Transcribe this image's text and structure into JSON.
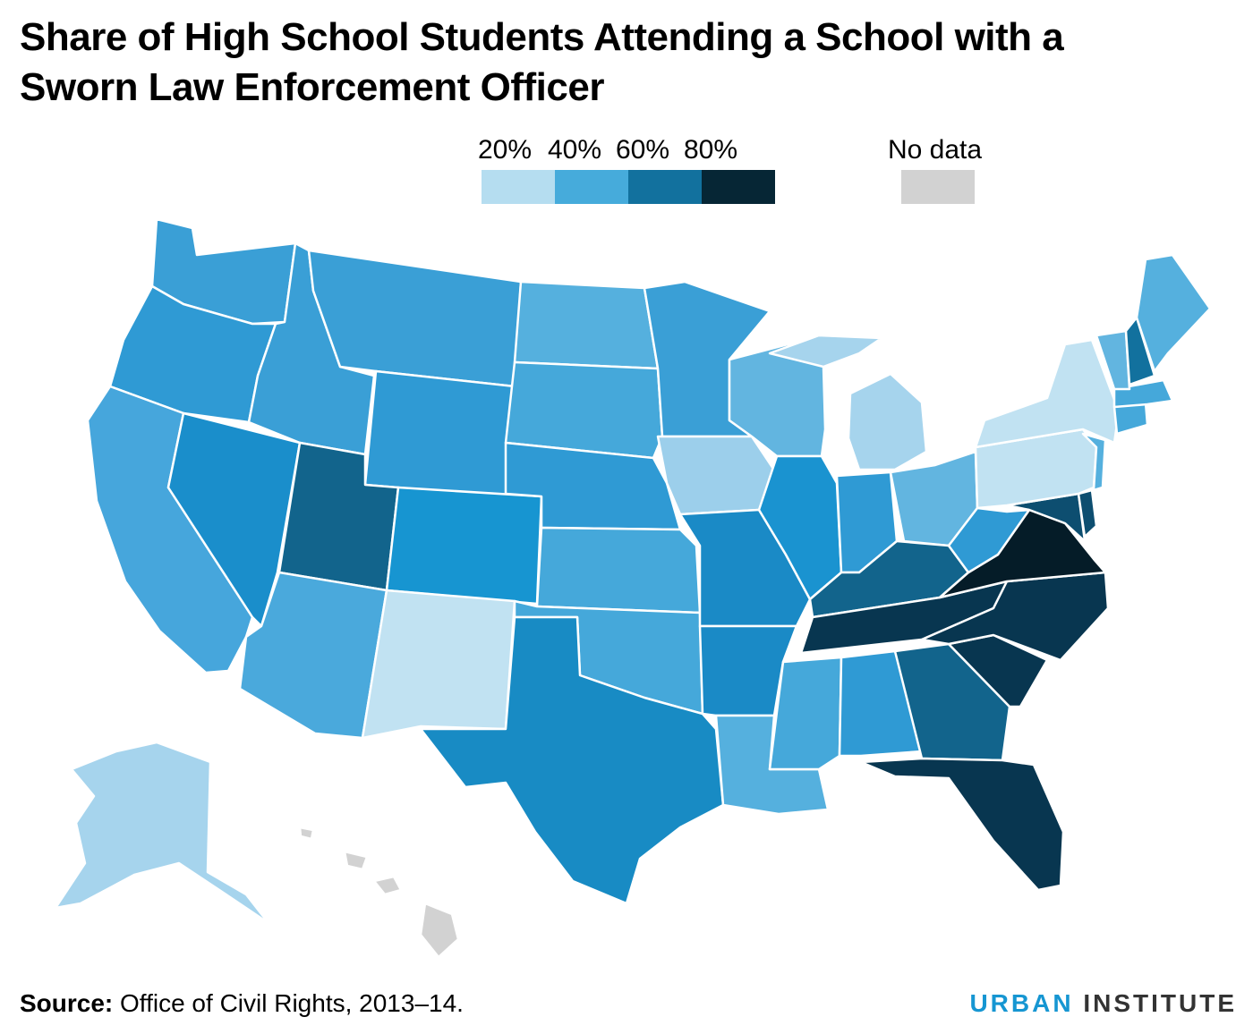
{
  "title": "Share of High School Students Attending a School with a Sworn Law Enforcement Officer",
  "legend": {
    "bins": [
      {
        "label": "20%",
        "color": "#b5ddf0"
      },
      {
        "label": "40%",
        "color": "#46abdb"
      },
      {
        "label": "60%",
        "color": "#12719e"
      },
      {
        "label": "80%",
        "color": "#062635"
      }
    ],
    "no_data_label": "No data",
    "no_data_color": "#d2d2d2"
  },
  "states": [
    {
      "id": "WA",
      "color": "#3a9fd6"
    },
    {
      "id": "OR",
      "color": "#2f9ad4"
    },
    {
      "id": "CA",
      "color": "#46a6dc"
    },
    {
      "id": "NV",
      "color": "#1a8ecb"
    },
    {
      "id": "ID",
      "color": "#3a9fd6"
    },
    {
      "id": "MT",
      "color": "#3a9fd6"
    },
    {
      "id": "WY",
      "color": "#2f9ad4"
    },
    {
      "id": "UT",
      "color": "#12648c"
    },
    {
      "id": "AZ",
      "color": "#4aa9dc"
    },
    {
      "id": "CO",
      "color": "#1795d1"
    },
    {
      "id": "NM",
      "color": "#c1e2f2"
    },
    {
      "id": "ND",
      "color": "#55b0de"
    },
    {
      "id": "SD",
      "color": "#45a8da"
    },
    {
      "id": "NE",
      "color": "#2f9ad4"
    },
    {
      "id": "KS",
      "color": "#45a8da"
    },
    {
      "id": "OK",
      "color": "#45a8da"
    },
    {
      "id": "TX",
      "color": "#188bc4"
    },
    {
      "id": "MN",
      "color": "#3a9fd6"
    },
    {
      "id": "IA",
      "color": "#9ccfeb"
    },
    {
      "id": "MO",
      "color": "#1a8ac6"
    },
    {
      "id": "AR",
      "color": "#1a8ac6"
    },
    {
      "id": "LA",
      "color": "#55b0de"
    },
    {
      "id": "WI",
      "color": "#62b5e0"
    },
    {
      "id": "IL",
      "color": "#1a93d0"
    },
    {
      "id": "MI",
      "color": "#a6d4ed"
    },
    {
      "id": "IN",
      "color": "#2f9ad4"
    },
    {
      "id": "OH",
      "color": "#62b5e0"
    },
    {
      "id": "KY",
      "color": "#12648c"
    },
    {
      "id": "TN",
      "color": "#083650"
    },
    {
      "id": "MS",
      "color": "#45a8da"
    },
    {
      "id": "AL",
      "color": "#2f9ad4"
    },
    {
      "id": "GA",
      "color": "#12648c"
    },
    {
      "id": "FL",
      "color": "#083650"
    },
    {
      "id": "SC",
      "color": "#083650"
    },
    {
      "id": "NC",
      "color": "#083650"
    },
    {
      "id": "VA",
      "color": "#051c28"
    },
    {
      "id": "WV",
      "color": "#2f9ad4"
    },
    {
      "id": "MD",
      "color": "#0d4e70"
    },
    {
      "id": "DE",
      "color": "#0d4e70"
    },
    {
      "id": "PA",
      "color": "#c1e2f2"
    },
    {
      "id": "NJ",
      "color": "#55b0de"
    },
    {
      "id": "NY",
      "color": "#c1e2f2"
    },
    {
      "id": "CT",
      "color": "#45a8da"
    },
    {
      "id": "MA",
      "color": "#45a8da"
    },
    {
      "id": "VT",
      "color": "#62b5e0"
    },
    {
      "id": "NH",
      "color": "#12719e"
    },
    {
      "id": "ME",
      "color": "#55b0de"
    },
    {
      "id": "AK",
      "color": "#a6d4ed"
    },
    {
      "id": "HI",
      "color": "#d2d2d2"
    }
  ],
  "source": {
    "label": "Source:",
    "text": "Office of Civil Rights, 2013–14."
  },
  "brand": {
    "part1": "URBAN",
    "part2": "INSTITUTE"
  }
}
